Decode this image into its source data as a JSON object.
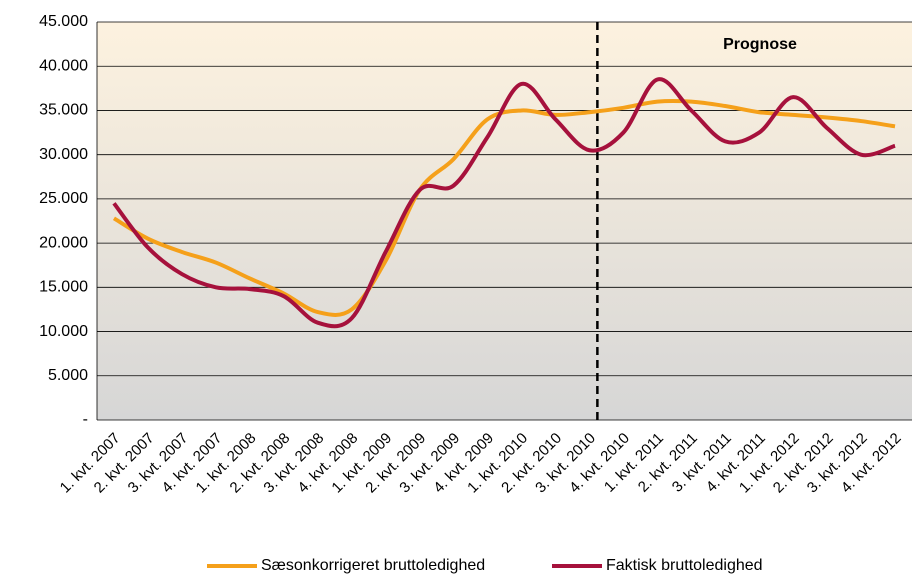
{
  "chart_data": {
    "type": "line",
    "annotation": "Prognose",
    "categories": [
      "1. kvt. 2007",
      "2. kvt. 2007",
      "3. kvt. 2007",
      "4. kvt. 2007",
      "1. kvt. 2008",
      "2. kvt. 2008",
      "3. kvt. 2008",
      "4. kvt. 2008",
      "1. kvt. 2009",
      "2. kvt. 2009",
      "3. kvt. 2009",
      "4. kvt. 2009",
      "1. kvt. 2010",
      "2. kvt. 2010",
      "3. kvt. 2010",
      "4. kvt. 2010",
      "1. kvt. 2011",
      "2. kvt. 2011",
      "3. kvt. 2011",
      "4. kvt. 2011",
      "1. kvt. 2012",
      "2. kvt. 2012",
      "3. kvt. 2012",
      "4. kvt. 2012"
    ],
    "series": [
      {
        "name": "Sæsonkorrigeret bruttoledighed",
        "color": "#f5a01a",
        "values": [
          22800,
          20500,
          19000,
          17800,
          16000,
          14300,
          12200,
          12500,
          18000,
          26000,
          29500,
          34000,
          35000,
          34500,
          34800,
          35300,
          36000,
          36000,
          35500,
          34800,
          34500,
          34200,
          33800,
          33200
        ]
      },
      {
        "name": "Faktisk bruttoledighed",
        "color": "#a6113c",
        "values": [
          24500,
          19500,
          16500,
          15000,
          14800,
          14000,
          11000,
          11500,
          19000,
          26000,
          26500,
          32000,
          38000,
          34000,
          30500,
          32500,
          38500,
          35000,
          31500,
          32500,
          36500,
          33000,
          30000,
          31000
        ]
      }
    ],
    "ylim": [
      0,
      45000
    ],
    "yticks": [
      {
        "value": 0,
        "label": "-"
      },
      {
        "value": 5000,
        "label": "5.000"
      },
      {
        "value": 10000,
        "label": "10.000"
      },
      {
        "value": 15000,
        "label": "15.000"
      },
      {
        "value": 20000,
        "label": "20.000"
      },
      {
        "value": 25000,
        "label": "25.000"
      },
      {
        "value": 30000,
        "label": "30.000"
      },
      {
        "value": 35000,
        "label": "35.000"
      },
      {
        "value": 40000,
        "label": "40.000"
      },
      {
        "value": 45000,
        "label": "45.000"
      }
    ],
    "grid": true
  }
}
